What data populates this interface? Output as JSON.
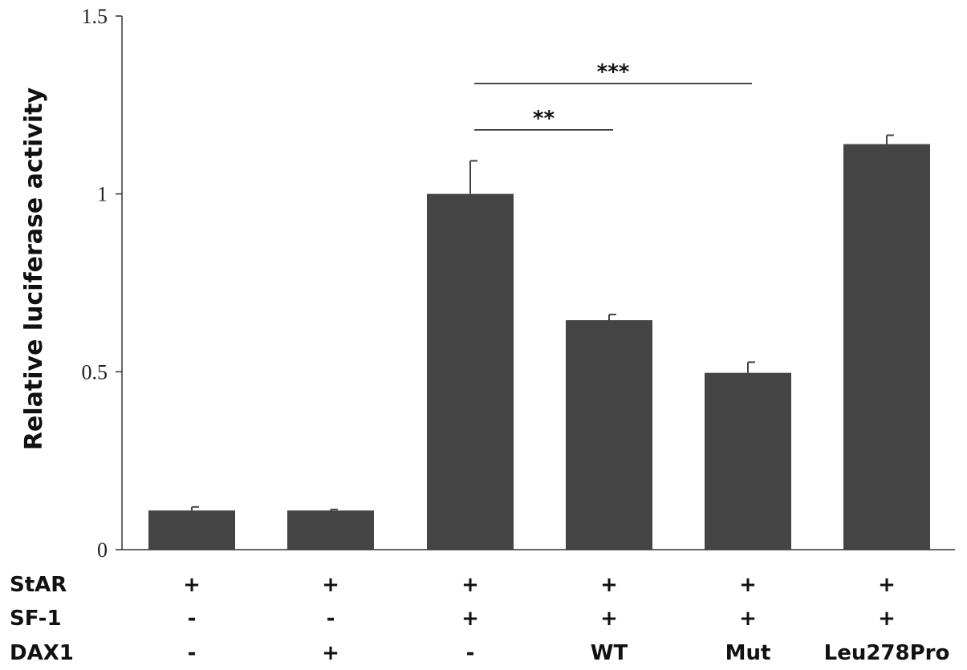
{
  "chart_data": {
    "type": "bar",
    "title": "",
    "xlabel": "",
    "ylabel": "Relative luciferase activity",
    "ylim": [
      0,
      1.5
    ],
    "yticks": [
      {
        "value": 0,
        "label": "0"
      },
      {
        "value": 0.5,
        "label": "0.5"
      },
      {
        "value": 1,
        "label": "1"
      },
      {
        "value": 1.5,
        "label": "1.5"
      }
    ],
    "grid": false,
    "bar_color": "#444444",
    "values": [
      0.11,
      0.11,
      1.0,
      0.645,
      0.497,
      1.14
    ],
    "errors": [
      0.01,
      0.003,
      0.093,
      0.016,
      0.03,
      0.025
    ],
    "condition_rows": [
      {
        "label": "StAR",
        "values": [
          "+",
          "+",
          "+",
          "+",
          "+",
          "+"
        ]
      },
      {
        "label": "SF-1",
        "values": [
          "-",
          "-",
          "+",
          "+",
          "+",
          "+"
        ]
      },
      {
        "label": "DAX1",
        "values": [
          "-",
          "+",
          "-",
          "WT",
          "Mut",
          "Leu278Pro"
        ]
      }
    ],
    "annotations": [
      {
        "from": 2,
        "to": 3,
        "y": 1.18,
        "text": "**"
      },
      {
        "from": 2,
        "to": 4,
        "y": 1.31,
        "text": "***"
      }
    ]
  }
}
